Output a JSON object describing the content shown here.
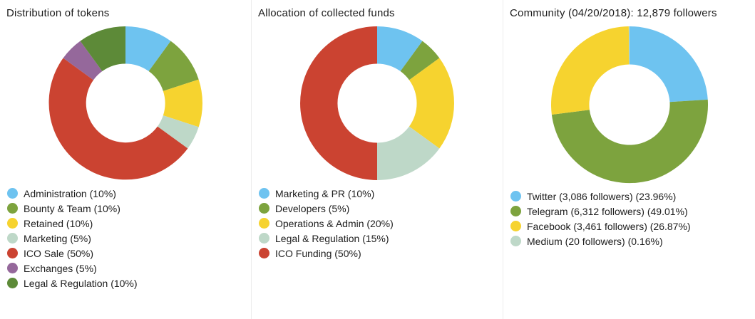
{
  "page": {
    "background": "#ffffff"
  },
  "palette": {
    "blue": "#6ec3f0",
    "olive_green": "#7da33e",
    "yellow": "#f6d32f",
    "pale_teal": "#bed8c8",
    "red": "#cb4331",
    "purple": "#95689b",
    "dark_green": "#5d8a38"
  },
  "chart_data": [
    {
      "type": "pie",
      "donut": true,
      "title": "Distribution of tokens",
      "legend_position": "bottom-left",
      "slices": [
        {
          "label": "Administration (10%)",
          "value": 10,
          "color": "#6ec3f0"
        },
        {
          "label": "Bounty & Team (10%)",
          "value": 10,
          "color": "#7da33e"
        },
        {
          "label": "Retained (10%)",
          "value": 10,
          "color": "#f6d32f"
        },
        {
          "label": "Marketing (5%)",
          "value": 5,
          "color": "#bed8c8"
        },
        {
          "label": "ICO Sale (50%)",
          "value": 50,
          "color": "#cb4331"
        },
        {
          "label": "Exchanges (5%)",
          "value": 5,
          "color": "#95689b"
        },
        {
          "label": "Legal & Regulation (10%)",
          "value": 10,
          "color": "#5d8a38"
        }
      ]
    },
    {
      "type": "pie",
      "donut": true,
      "title": "Allocation of collected funds",
      "legend_position": "bottom-left",
      "slices": [
        {
          "label": "Marketing & PR (10%)",
          "value": 10,
          "color": "#6ec3f0"
        },
        {
          "label": "Developers (5%)",
          "value": 5,
          "color": "#7da33e"
        },
        {
          "label": "Operations & Admin (20%)",
          "value": 20,
          "color": "#f6d32f"
        },
        {
          "label": "Legal & Regulation (15%)",
          "value": 15,
          "color": "#bed8c8"
        },
        {
          "label": "ICO Funding (50%)",
          "value": 50,
          "color": "#cb4331"
        }
      ]
    },
    {
      "type": "pie",
      "donut": true,
      "title": "Community (04/20/2018): 12,879 followers",
      "date": "04/20/2018",
      "total_followers": "12,879",
      "legend_position": "bottom-left",
      "slices": [
        {
          "label": "Twitter (3,086 followers) (23.96%)",
          "value": 23.96,
          "followers": "3,086",
          "color": "#6ec3f0"
        },
        {
          "label": "Telegram (6,312 followers) (49.01%)",
          "value": 49.01,
          "followers": "6,312",
          "color": "#7da33e"
        },
        {
          "label": "Facebook (3,461 followers) (26.87%)",
          "value": 26.87,
          "followers": "3,461",
          "color": "#f6d32f"
        },
        {
          "label": "Medium (20 followers) (0.16%)",
          "value": 0.16,
          "followers": "20",
          "color": "#bed8c8"
        }
      ]
    }
  ]
}
